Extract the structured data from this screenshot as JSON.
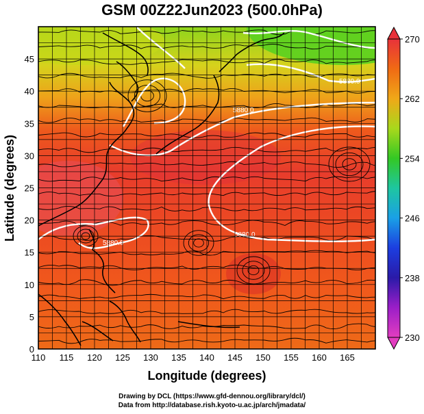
{
  "title": "GSM 00Z22Jun2023 (500.0hPa)",
  "xlabel": "Longitude (degrees)",
  "ylabel": "Latitude  (degrees)",
  "credits": [
    "Drawing by DCL (https://www.gfd-dennou.org/library/dcl/)",
    "Data from http://database.rish.kyoto-u.ac.jp/arch/jmadata/"
  ],
  "chart_data": {
    "type": "heatmap",
    "xlim": [
      110,
      170
    ],
    "ylim": [
      0,
      50
    ],
    "x_ticks": [
      110,
      115,
      120,
      125,
      130,
      135,
      140,
      145,
      150,
      155,
      160,
      165
    ],
    "y_ticks": [
      0,
      5,
      10,
      15,
      20,
      25,
      30,
      35,
      40,
      45
    ],
    "grid": true,
    "colorbar": {
      "ticks": [
        230,
        238,
        246,
        254,
        262,
        270
      ],
      "range": [
        230,
        270
      ],
      "extend": "both"
    },
    "contour_label": "5880.0",
    "contour_labels_shown": [
      "5880.0",
      "5880.0",
      "5880.0",
      "5880.0"
    ]
  }
}
